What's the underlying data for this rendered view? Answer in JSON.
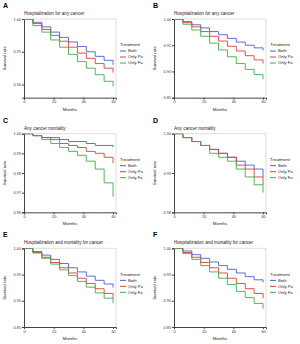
{
  "chart_data": [
    {
      "type": "line",
      "panel_label": "A",
      "title": "Hospitalization for any cancer",
      "x_label": "Months",
      "y_label": "Survival rate",
      "legend_title": "Treatment",
      "legend": "right",
      "line_style": "step",
      "x": [
        0,
        6,
        12,
        18,
        24,
        30,
        36,
        42,
        48,
        54,
        60
      ],
      "xlim": [
        0,
        62
      ],
      "xticks": [
        0,
        20,
        40,
        60
      ],
      "ylim": [
        0.88,
        1.0
      ],
      "yticks": [
        {
          "value": 0.9,
          "label": "0.90"
        },
        {
          "value": 0.95,
          "label": "0.95"
        },
        {
          "value": 1.0,
          "label": "1.00"
        }
      ],
      "series": [
        {
          "name": "Both",
          "color": "#4a5fd6",
          "values": [
            1.0,
            0.995,
            0.988,
            0.98,
            0.972,
            0.965,
            0.958,
            0.95,
            0.943,
            0.937,
            0.93
          ]
        },
        {
          "name": "Only Pa",
          "color": "#d9413a",
          "values": [
            1.0,
            0.993,
            0.984,
            0.975,
            0.966,
            0.957,
            0.948,
            0.94,
            0.932,
            0.925,
            0.918
          ]
        },
        {
          "name": "Only Fa",
          "color": "#3fae4a",
          "values": [
            1.0,
            0.99,
            0.98,
            0.968,
            0.957,
            0.946,
            0.935,
            0.925,
            0.915,
            0.905,
            0.897
          ]
        }
      ]
    },
    {
      "type": "line",
      "panel_label": "B",
      "title": "Hospitalization for any cancer",
      "x_label": "Months",
      "y_label": "Survival rate",
      "legend_title": "Treatment",
      "legend": "right",
      "line_style": "step",
      "x": [
        0,
        6,
        12,
        18,
        24,
        30,
        36,
        42,
        48,
        54,
        60
      ],
      "xlim": [
        0,
        62
      ],
      "xticks": [
        0,
        20,
        40,
        60
      ],
      "ylim": [
        0.85,
        1.0
      ],
      "yticks": [
        {
          "value": 0.85,
          "label": "0.85"
        },
        {
          "value": 0.9,
          "label": "0.90"
        },
        {
          "value": 0.95,
          "label": "0.95"
        },
        {
          "value": 1.0,
          "label": "1.00"
        }
      ],
      "series": [
        {
          "name": "Both",
          "color": "#4a5fd6",
          "values": [
            1.0,
            0.995,
            0.989,
            0.983,
            0.976,
            0.97,
            0.963,
            0.956,
            0.95,
            0.945,
            0.94
          ]
        },
        {
          "name": "Only Pa",
          "color": "#d9413a",
          "values": [
            1.0,
            0.993,
            0.985,
            0.976,
            0.967,
            0.958,
            0.948,
            0.939,
            0.93,
            0.922,
            0.915
          ]
        },
        {
          "name": "Only Fa",
          "color": "#3fae4a",
          "values": [
            1.0,
            0.99,
            0.979,
            0.967,
            0.954,
            0.941,
            0.928,
            0.915,
            0.904,
            0.894,
            0.885
          ]
        }
      ]
    },
    {
      "type": "line",
      "panel_label": "C",
      "title": "Any cancer mortality",
      "x_label": "Months",
      "y_label": "Survival rate",
      "legend_title": "Treatment",
      "legend": "right",
      "line_style": "step",
      "x": [
        0,
        6,
        12,
        18,
        24,
        30,
        36,
        42,
        48,
        54,
        60
      ],
      "xlim": [
        0,
        62
      ],
      "xticks": [
        0,
        20,
        40,
        60
      ],
      "ylim": [
        0.96,
        1.0
      ],
      "yticks": [
        {
          "value": 0.96,
          "label": "0.96"
        },
        {
          "value": 0.97,
          "label": "0.97"
        },
        {
          "value": 0.98,
          "label": "0.98"
        },
        {
          "value": 0.99,
          "label": "0.99"
        },
        {
          "value": 1.0,
          "label": "1.00"
        }
      ],
      "series": [
        {
          "name": "Both",
          "color": "#4a5fd6",
          "values": [
            1.0,
            0.999,
            0.998,
            0.998,
            0.997,
            0.996,
            0.996,
            0.995,
            0.994,
            0.994,
            0.993
          ]
        },
        {
          "name": "Only Pa",
          "color": "#d9413a",
          "values": [
            1.0,
            0.999,
            0.998,
            0.997,
            0.995,
            0.994,
            0.993,
            0.991,
            0.99,
            0.988,
            0.985
          ]
        },
        {
          "name": "Only Fa",
          "color": "#3fae4a",
          "values": [
            1.0,
            0.999,
            0.997,
            0.995,
            0.993,
            0.991,
            0.989,
            0.986,
            0.982,
            0.975,
            0.968
          ]
        }
      ]
    },
    {
      "type": "line",
      "panel_label": "D",
      "title": "Any cancer mortality",
      "x_label": "Months",
      "y_label": "Survival rate",
      "legend_title": "Treatment",
      "legend": "right",
      "line_style": "step",
      "x": [
        0,
        6,
        12,
        18,
        24,
        30,
        36,
        42,
        48,
        54,
        60
      ],
      "xlim": [
        0,
        62
      ],
      "xticks": [
        0,
        20,
        40,
        60
      ],
      "ylim": [
        0.98,
        1.0
      ],
      "yticks": [
        {
          "value": 0.98,
          "label": "0.98"
        },
        {
          "value": 0.99,
          "label": "0.99"
        },
        {
          "value": 1.0,
          "label": "1.00"
        }
      ],
      "series": [
        {
          "name": "Both",
          "color": "#4a5fd6",
          "values": [
            1.0,
            0.999,
            0.998,
            0.997,
            0.996,
            0.995,
            0.994,
            0.993,
            0.992,
            0.991,
            0.989
          ]
        },
        {
          "name": "Only Pa",
          "color": "#d9413a",
          "values": [
            1.0,
            0.999,
            0.998,
            0.997,
            0.996,
            0.995,
            0.994,
            0.992,
            0.991,
            0.989,
            0.987
          ]
        },
        {
          "name": "Only Fa",
          "color": "#3fae4a",
          "values": [
            1.0,
            0.999,
            0.998,
            0.997,
            0.995,
            0.994,
            0.993,
            0.991,
            0.989,
            0.987,
            0.985
          ]
        }
      ]
    },
    {
      "type": "line",
      "panel_label": "E",
      "title": "Hospitalization and mortality for cancer",
      "x_label": "Months",
      "y_label": "Survival rate",
      "legend_title": "Treatment",
      "legend": "right",
      "line_style": "step",
      "x": [
        0,
        6,
        12,
        18,
        24,
        30,
        36,
        42,
        48,
        54,
        60
      ],
      "xlim": [
        0,
        62
      ],
      "xticks": [
        0,
        20,
        40,
        60
      ],
      "ylim": [
        0.85,
        1.0
      ],
      "yticks": [
        {
          "value": 0.85,
          "label": "0.85"
        },
        {
          "value": 0.9,
          "label": "0.90"
        },
        {
          "value": 0.95,
          "label": "0.95"
        },
        {
          "value": 1.0,
          "label": "1.00"
        }
      ],
      "series": [
        {
          "name": "Both",
          "color": "#4a5fd6",
          "values": [
            1.0,
            0.994,
            0.987,
            0.979,
            0.971,
            0.963,
            0.955,
            0.947,
            0.939,
            0.932,
            0.925
          ]
        },
        {
          "name": "Only Pa",
          "color": "#d9413a",
          "values": [
            1.0,
            0.992,
            0.983,
            0.973,
            0.963,
            0.953,
            0.943,
            0.933,
            0.923,
            0.914,
            0.905
          ]
        },
        {
          "name": "Only Fa",
          "color": "#3fae4a",
          "values": [
            1.0,
            0.991,
            0.981,
            0.97,
            0.959,
            0.948,
            0.937,
            0.926,
            0.915,
            0.905,
            0.895
          ]
        }
      ]
    },
    {
      "type": "line",
      "panel_label": "F",
      "title": "Hospitalization and mortality for cancer",
      "x_label": "Months",
      "y_label": "Survival rate",
      "legend_title": "Treatment",
      "legend": "right",
      "line_style": "step",
      "x": [
        0,
        6,
        12,
        18,
        24,
        30,
        36,
        42,
        48,
        54,
        60
      ],
      "xlim": [
        0,
        62
      ],
      "xticks": [
        0,
        20,
        40,
        60
      ],
      "ylim": [
        0.85,
        1.0
      ],
      "yticks": [
        {
          "value": 0.85,
          "label": "0.85"
        },
        {
          "value": 0.9,
          "label": "0.90"
        },
        {
          "value": 0.95,
          "label": "0.95"
        },
        {
          "value": 1.0,
          "label": "1.00"
        }
      ],
      "series": [
        {
          "name": "Both",
          "color": "#4a5fd6",
          "values": [
            1.0,
            0.995,
            0.988,
            0.981,
            0.974,
            0.967,
            0.96,
            0.953,
            0.946,
            0.94,
            0.935
          ]
        },
        {
          "name": "Only Pa",
          "color": "#d9413a",
          "values": [
            1.0,
            0.992,
            0.983,
            0.973,
            0.963,
            0.953,
            0.943,
            0.933,
            0.923,
            0.914,
            0.905
          ]
        },
        {
          "name": "Only Fa",
          "color": "#3fae4a",
          "values": [
            1.0,
            0.99,
            0.979,
            0.967,
            0.955,
            0.943,
            0.931,
            0.918,
            0.906,
            0.895,
            0.885
          ]
        }
      ]
    }
  ]
}
